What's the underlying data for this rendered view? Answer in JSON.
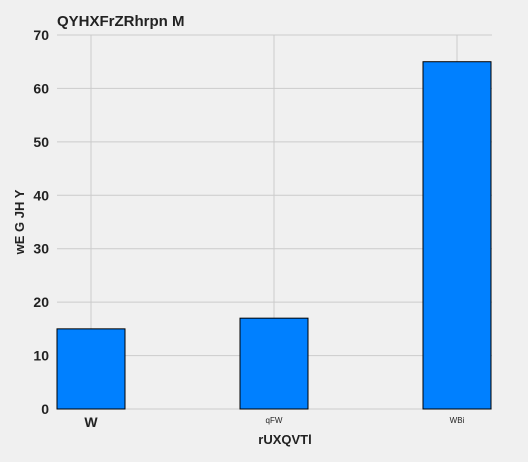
{
  "chart_data": {
    "type": "bar",
    "title": "QYHXFrZRhrpn M",
    "xlabel": "rUXQVTl",
    "ylabel": "wE  G JH Y",
    "categories": [
      "W",
      "qFW",
      "WBi"
    ],
    "values": [
      15,
      17,
      65
    ],
    "ylim": [
      0,
      70
    ],
    "yticks": [
      0,
      10,
      20,
      30,
      40,
      50,
      60,
      70
    ],
    "grid": true,
    "colors": {
      "bar": "#0080ff",
      "background": "#f0f0f0",
      "grid": "#cbcbcb"
    }
  }
}
